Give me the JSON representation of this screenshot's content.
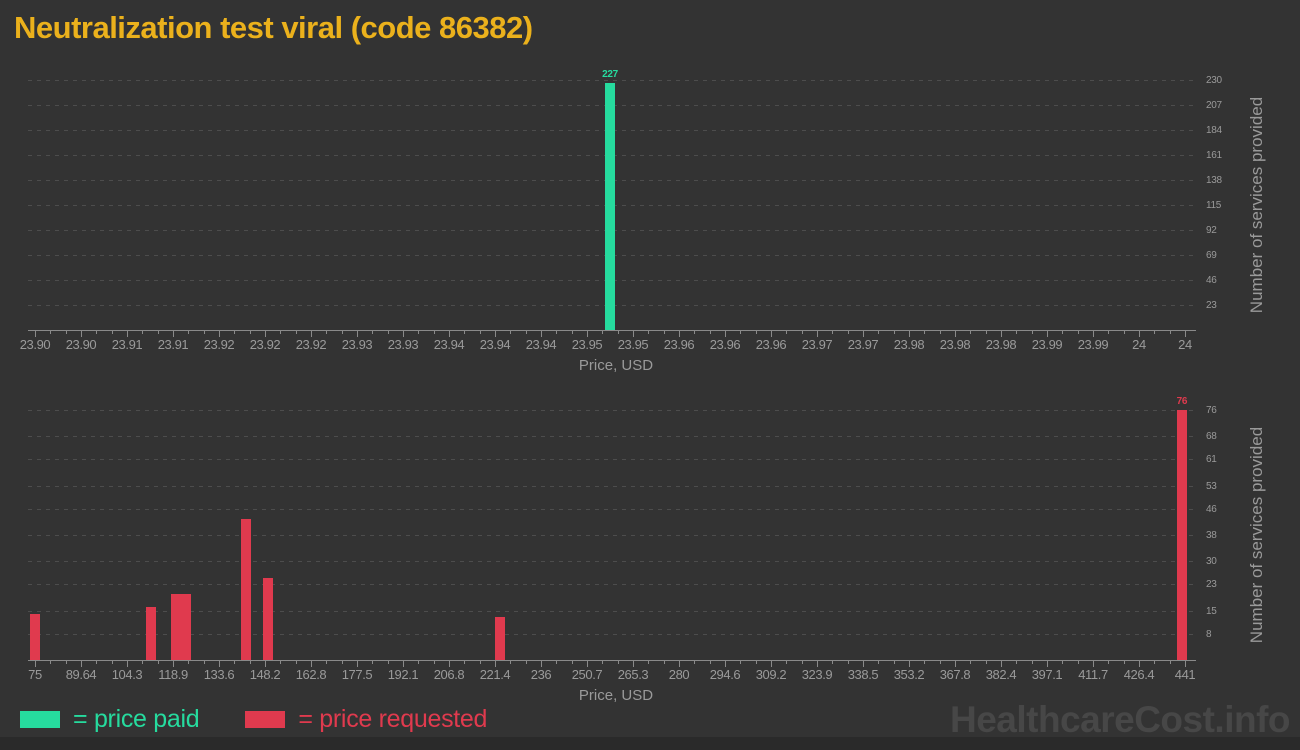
{
  "page": {
    "title": "Neutralization test viral (code 86382)",
    "watermark": "HealthcareCost.info"
  },
  "colors": {
    "background": "#333333",
    "footer_strip": "#2a2a2a",
    "title": "#ebb11c",
    "green": "#26db9e",
    "red": "#e03a4e",
    "grid": "#4d4d4d",
    "axis_line": "#8a8a8a",
    "tick_label": "#9a9a9a",
    "axis_title": "#9a9a9a",
    "watermark": "#474747"
  },
  "legend": {
    "items": [
      {
        "label": "= price paid",
        "color": "#26db9e"
      },
      {
        "label": "= price requested",
        "color": "#e03a4e"
      }
    ]
  },
  "chart_data": [
    {
      "type": "bar",
      "series_name": "price paid",
      "bar_color": "#26db9e",
      "xlabel": "Price, USD",
      "ylabel": "Number of services provided",
      "x_range": [
        23.9,
        24
      ],
      "x_ticks": [
        "23.90",
        "23.90",
        "23.91",
        "23.91",
        "23.92",
        "23.92",
        "23.92",
        "23.93",
        "23.93",
        "23.94",
        "23.94",
        "23.94",
        "23.95",
        "23.95",
        "23.96",
        "23.96",
        "23.96",
        "23.97",
        "23.97",
        "23.98",
        "23.98",
        "23.98",
        "23.99",
        "23.99",
        "24",
        "24"
      ],
      "y_ticks": [
        230,
        207,
        184,
        161,
        138,
        115,
        92,
        69,
        46,
        23
      ],
      "y_max": 230,
      "grid": true,
      "legend_position": "bottom",
      "bars": [
        {
          "price": 23.95,
          "count": 227,
          "labeled": true
        }
      ]
    },
    {
      "type": "bar",
      "series_name": "price requested",
      "bar_color": "#e03a4e",
      "xlabel": "Price, USD",
      "ylabel": "Number of services provided",
      "x_range": [
        75,
        441
      ],
      "x_ticks": [
        "75",
        "89.64",
        "104.3",
        "118.9",
        "133.6",
        "148.2",
        "162.8",
        "177.5",
        "192.1",
        "206.8",
        "221.4",
        "236",
        "250.7",
        "265.3",
        "280",
        "294.6",
        "309.2",
        "323.9",
        "338.5",
        "353.2",
        "367.8",
        "382.4",
        "397.1",
        "411.7",
        "426.4",
        "441"
      ],
      "y_ticks": [
        76,
        68,
        61,
        53,
        46,
        38,
        30,
        23,
        15,
        8
      ],
      "y_max": 76,
      "grid": true,
      "legend_position": "bottom",
      "bars": [
        {
          "price": 75,
          "count": 14
        },
        {
          "price": 112,
          "count": 16
        },
        {
          "price": 120,
          "count": 20
        },
        {
          "price": 123,
          "count": 20
        },
        {
          "price": 142,
          "count": 43
        },
        {
          "price": 149,
          "count": 25
        },
        {
          "price": 223,
          "count": 13
        },
        {
          "price": 440,
          "count": 76,
          "labeled": true
        }
      ]
    }
  ]
}
